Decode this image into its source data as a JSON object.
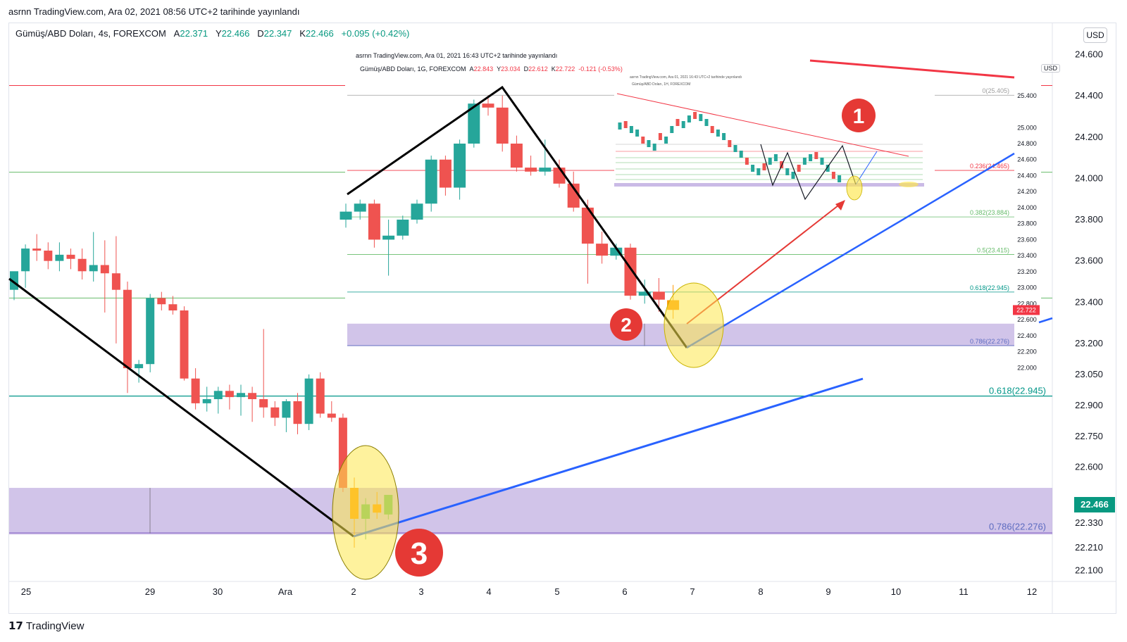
{
  "top_caption": "asrnn TradingView.com, Ara 02, 2021 08:56 UTC+2 tarihinde yayınlandı",
  "legend": {
    "symbol": "Gümüş/ABD Doları, 4s, FOREXCOM",
    "open_label": "A",
    "open": "22.371",
    "high_label": "Y",
    "high": "22.466",
    "low_label": "D",
    "low": "22.347",
    "close_label": "K",
    "close": "22.466",
    "change": "+0.095 (+0.42%)"
  },
  "currency": "USD",
  "last_price_tag": "22.466",
  "footer_logo": "TradingView",
  "colors": {
    "up": "#26a69a",
    "down": "#ef5350",
    "highlight": "#fde74c",
    "zone": "#b39ddb",
    "trend_blue": "#2962ff",
    "marker_red": "#e53935"
  },
  "markers": [
    "1",
    "2",
    "3"
  ],
  "chart_data": [
    {
      "type": "candlestick",
      "name_source": "main",
      "x_ticks": [
        "25",
        "29",
        "30",
        "Ara",
        "2",
        "3",
        "4",
        "5",
        "6",
        "7",
        "8",
        "9",
        "10",
        "11",
        "12"
      ],
      "y_ticks": [
        "24.600",
        "24.400",
        "24.200",
        "24.000",
        "23.800",
        "23.600",
        "23.400",
        "23.200",
        "23.050",
        "22.900",
        "22.750",
        "22.600",
        "22.466",
        "22.330",
        "22.210",
        "22.100"
      ],
      "ylim": [
        22.06,
        24.66
      ],
      "fib_labels": [
        "0.618(22.945)",
        "0.786(22.276)"
      ],
      "fib_levels": [
        22.945,
        22.276
      ],
      "horizontal_lines": [
        24.45,
        24.03,
        23.42
      ],
      "zone": [
        22.28,
        22.5
      ],
      "candles": [
        {
          "o": 23.46,
          "h": 23.53,
          "l": 23.41,
          "c": 23.55
        },
        {
          "o": 23.55,
          "h": 23.68,
          "l": 23.47,
          "c": 23.66
        },
        {
          "o": 23.66,
          "h": 23.73,
          "l": 23.6,
          "c": 23.65
        },
        {
          "o": 23.65,
          "h": 23.69,
          "l": 23.56,
          "c": 23.6
        },
        {
          "o": 23.6,
          "h": 23.69,
          "l": 23.55,
          "c": 23.63
        },
        {
          "o": 23.63,
          "h": 23.66,
          "l": 23.56,
          "c": 23.61
        },
        {
          "o": 23.61,
          "h": 23.66,
          "l": 23.51,
          "c": 23.55
        },
        {
          "o": 23.55,
          "h": 23.74,
          "l": 23.5,
          "c": 23.58
        },
        {
          "o": 23.58,
          "h": 23.7,
          "l": 23.35,
          "c": 23.54
        },
        {
          "o": 23.54,
          "h": 23.72,
          "l": 23.2,
          "c": 23.46
        },
        {
          "o": 23.46,
          "h": 23.5,
          "l": 22.96,
          "c": 23.08
        },
        {
          "o": 23.08,
          "h": 23.12,
          "l": 23.01,
          "c": 23.1
        },
        {
          "o": 23.1,
          "h": 23.44,
          "l": 23.06,
          "c": 23.42
        },
        {
          "o": 23.42,
          "h": 23.45,
          "l": 23.36,
          "c": 23.39
        },
        {
          "o": 23.39,
          "h": 23.43,
          "l": 23.34,
          "c": 23.36
        },
        {
          "o": 23.36,
          "h": 23.38,
          "l": 23.02,
          "c": 23.03
        },
        {
          "o": 23.03,
          "h": 23.08,
          "l": 22.88,
          "c": 22.91
        },
        {
          "o": 22.91,
          "h": 22.99,
          "l": 22.87,
          "c": 22.93
        },
        {
          "o": 22.93,
          "h": 22.99,
          "l": 22.86,
          "c": 22.97
        },
        {
          "o": 22.97,
          "h": 23.0,
          "l": 22.88,
          "c": 22.94
        },
        {
          "o": 22.94,
          "h": 23.0,
          "l": 22.85,
          "c": 22.96
        },
        {
          "o": 22.96,
          "h": 22.99,
          "l": 22.82,
          "c": 22.93
        },
        {
          "o": 22.93,
          "h": 23.27,
          "l": 22.84,
          "c": 22.89
        },
        {
          "o": 22.89,
          "h": 22.92,
          "l": 22.8,
          "c": 22.84
        },
        {
          "o": 22.84,
          "h": 22.93,
          "l": 22.77,
          "c": 22.92
        },
        {
          "o": 22.92,
          "h": 22.96,
          "l": 22.76,
          "c": 22.81
        },
        {
          "o": 22.81,
          "h": 23.05,
          "l": 22.78,
          "c": 23.03
        },
        {
          "o": 23.03,
          "h": 23.06,
          "l": 22.84,
          "c": 22.86
        },
        {
          "o": 22.86,
          "h": 22.92,
          "l": 22.82,
          "c": 22.84
        },
        {
          "o": 22.84,
          "h": 22.86,
          "l": 22.48,
          "c": 22.5
        },
        {
          "o": 22.5,
          "h": 22.55,
          "l": 22.21,
          "c": 22.35
        },
        {
          "o": 22.35,
          "h": 22.45,
          "l": 22.25,
          "c": 22.42
        },
        {
          "o": 22.42,
          "h": 22.48,
          "l": 22.35,
          "c": 22.38
        },
        {
          "o": 22.371,
          "h": 22.466,
          "l": 22.347,
          "c": 22.466
        }
      ]
    },
    {
      "type": "candlestick",
      "name_source": "inset-daily",
      "caption": "asrnn TradingView.com, Ara 01, 2021 16:43 UTC+2 tarihinde yayınlandı",
      "legend": {
        "symbol": "Gümüş/ABD Doları, 1G, FOREXCOM",
        "open_label": "A",
        "open": "22.843",
        "high_label": "Y",
        "high": "23.034",
        "low_label": "D",
        "low": "22.612",
        "close_label": "K",
        "close": "22.722",
        "change": "-0.121 (-0.53%)"
      },
      "currency": "USD",
      "last_price_tag": "22.722",
      "y_ticks": [
        "25.400",
        "25.000",
        "24.800",
        "24.600",
        "24.400",
        "24.200",
        "24.000",
        "23.800",
        "23.600",
        "23.400",
        "23.200",
        "23.000",
        "22.800",
        "22.600",
        "22.400",
        "22.200",
        "22.000"
      ],
      "fib_labels": [
        "0(25.405)",
        "0.236(24.465)",
        "0.382(23.884)",
        "0.5(23.415)",
        "0.618(22.945)",
        "0.786(22.276)"
      ],
      "fib_levels": [
        25.405,
        24.465,
        23.884,
        23.415,
        22.945,
        22.276
      ],
      "ylim": [
        21.95,
        25.75
      ],
      "candles": [
        {
          "o": 23.85,
          "h": 24.05,
          "l": 23.75,
          "c": 23.95
        },
        {
          "o": 23.95,
          "h": 24.1,
          "l": 23.85,
          "c": 24.05
        },
        {
          "o": 24.05,
          "h": 24.1,
          "l": 23.5,
          "c": 23.6
        },
        {
          "o": 23.6,
          "h": 23.85,
          "l": 23.15,
          "c": 23.65
        },
        {
          "o": 23.65,
          "h": 23.9,
          "l": 23.6,
          "c": 23.85
        },
        {
          "o": 23.85,
          "h": 24.1,
          "l": 23.8,
          "c": 24.05
        },
        {
          "o": 24.05,
          "h": 24.65,
          "l": 23.95,
          "c": 24.6
        },
        {
          "o": 24.6,
          "h": 24.65,
          "l": 24.15,
          "c": 24.25
        },
        {
          "o": 24.25,
          "h": 24.85,
          "l": 24.1,
          "c": 24.8
        },
        {
          "o": 24.8,
          "h": 25.35,
          "l": 24.75,
          "c": 25.3
        },
        {
          "o": 25.3,
          "h": 25.4,
          "l": 25.15,
          "c": 25.25
        },
        {
          "o": 25.25,
          "h": 25.4,
          "l": 24.7,
          "c": 24.8
        },
        {
          "o": 24.8,
          "h": 24.9,
          "l": 24.45,
          "c": 24.5
        },
        {
          "o": 24.5,
          "h": 24.65,
          "l": 24.4,
          "c": 24.45
        },
        {
          "o": 24.45,
          "h": 24.85,
          "l": 24.4,
          "c": 24.5
        },
        {
          "o": 24.5,
          "h": 24.6,
          "l": 24.25,
          "c": 24.3
        },
        {
          "o": 24.3,
          "h": 24.45,
          "l": 23.95,
          "c": 24.0
        },
        {
          "o": 24.0,
          "h": 24.1,
          "l": 23.05,
          "c": 23.55
        },
        {
          "o": 23.55,
          "h": 23.7,
          "l": 23.3,
          "c": 23.4
        },
        {
          "o": 23.4,
          "h": 23.55,
          "l": 23.35,
          "c": 23.5
        },
        {
          "o": 23.5,
          "h": 23.55,
          "l": 22.85,
          "c": 22.9
        },
        {
          "o": 22.9,
          "h": 23.1,
          "l": 22.8,
          "c": 22.95
        },
        {
          "o": 22.95,
          "h": 23.12,
          "l": 22.7,
          "c": 22.85
        },
        {
          "o": 22.843,
          "h": 23.034,
          "l": 22.612,
          "c": 22.722
        }
      ]
    },
    {
      "type": "line",
      "name_source": "inset-weekly-thumbnail",
      "caption": "asrnn TradingView.com, Ara 01, 2021 16:43 UTC+2 tarihinde yayınlandı",
      "legend": "Gümüş/ABD Doları, 1H, FOREXCOM"
    }
  ]
}
